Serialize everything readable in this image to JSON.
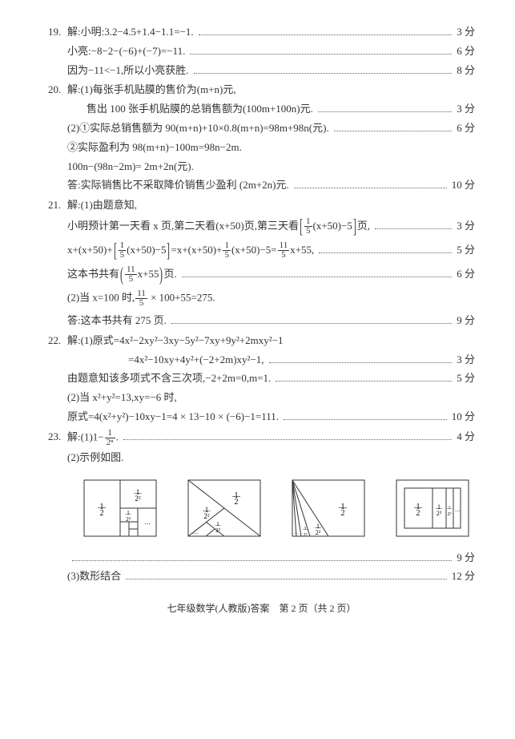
{
  "p19": {
    "l1": {
      "num": "19.",
      "text": "解:小明:3.2−4.5+1.4−1.1=−1.",
      "score": "3 分"
    },
    "l2": {
      "text": "小亮:−8−2−(−6)+(−7)=−11.",
      "score": "6 分"
    },
    "l3": {
      "text": "因为−11<−1,所以小亮获胜.",
      "score": "8 分"
    }
  },
  "p20": {
    "l1": {
      "num": "20.",
      "text": "解:(1)每张手机贴膜的售价为(m+n)元,"
    },
    "l2": {
      "text": "售出 100 张手机贴膜的总销售额为(100m+100n)元.",
      "score": "3 分"
    },
    "l3": {
      "text": "(2)①实际总销售额为 90(m+n)+10×0.8(m+n)=98m+98n(元).",
      "score": "6 分"
    },
    "l4": {
      "text": "②实际盈利为 98(m+n)−100m=98n−2m."
    },
    "l5": {
      "text": "100n−(98n−2m)= 2m+2n(元)."
    },
    "l6": {
      "text": "答:实际销售比不采取降价销售少盈利 (2m+2n)元.",
      "score": "10 分"
    }
  },
  "p21": {
    "l1": {
      "num": "21.",
      "text": "解:(1)由题意知,"
    },
    "l2_a": "小明预计第一天看 x 页,第二天看(x+50)页,第三天看",
    "l2_b": "(x+50)−5",
    "l2_c": "页,",
    "l2_score": "3 分",
    "l3_a": "x+(x+50)+",
    "l3_b": "(x+50)−5",
    "l3_c": "=x+(x+50)+",
    "l3_d": "(x+50)−5=",
    "l3_e": "x+55,",
    "l3_score": "5 分",
    "l4_a": "这本书共有",
    "l4_b": "x+55",
    "l4_c": "页.",
    "l4_score": "6 分",
    "l5_a": "(2)当 x=100 时,",
    "l5_b": " × 100+55=275.",
    "l6": {
      "text": "答:这本书共有 275 页.",
      "score": "9 分"
    }
  },
  "p22": {
    "l1": {
      "num": "22.",
      "text": "解:(1)原式=4x²−2xy²−3xy−5y²−7xy+9y²+2mxy²−1"
    },
    "l2": {
      "text": "=4x²−10xy+4y²+(−2+2m)xy²−1,",
      "score": "3 分"
    },
    "l3": {
      "text": "由题意知该多项式不含三次项,−2+2m=0,m=1.",
      "score": "5 分"
    },
    "l4": {
      "text": "(2)当 x²+y²=13,xy=−6 时,"
    },
    "l5": {
      "text": "原式=4(x²+y²)−10xy−1=4 × 13−10 × (−6)−1=111.",
      "score": "10 分"
    }
  },
  "p23": {
    "l1": {
      "num": "23.",
      "text_a": "解:(1)1−",
      "text_b": ".",
      "score": "4 分"
    },
    "l2": {
      "text": "(2)示例如图."
    },
    "l3": {
      "score": "9 分"
    },
    "l4": {
      "text": "(3)数形结合",
      "score": "12 分"
    }
  },
  "frac": {
    "f1": {
      "n": "1",
      "d": "5"
    },
    "f11": {
      "n": "11",
      "d": "5"
    },
    "f12n": {
      "n": "1",
      "d": "2ⁿ"
    },
    "h": {
      "n": "1",
      "d": "2"
    },
    "q": {
      "n": "1",
      "d": "2²"
    },
    "e": {
      "n": "1",
      "d": "2³"
    }
  },
  "dots": "…",
  "dotsSmall": "…",
  "footer": "七年级数学(人教版)答案　第 2 页（共 2 页）",
  "colors": {
    "text": "#333333",
    "line": "#333333",
    "bg": "#ffffff"
  }
}
